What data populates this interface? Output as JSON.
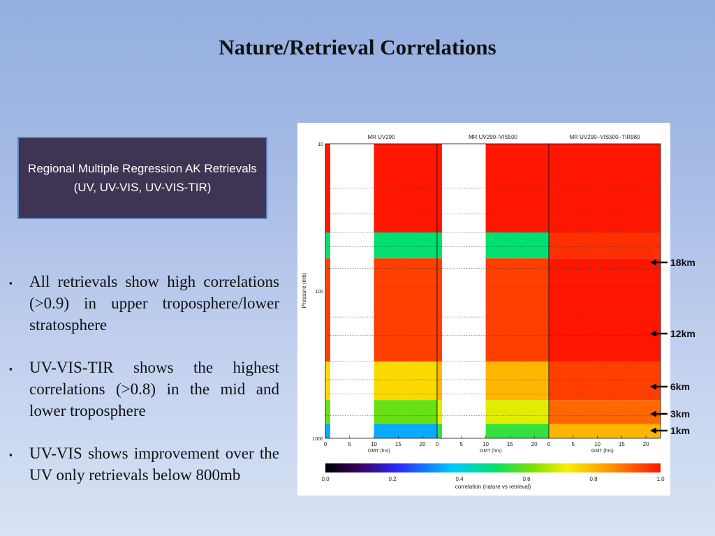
{
  "slide": {
    "title": "Nature/Retrieval Correlations",
    "box_text": "Regional Multiple Regression AK Retrievals (UV, UV-VIS, UV-VIS-TIR)",
    "bullets": [
      "All retrievals show high correlations (>0.9) in upper troposphere/lower stratosphere",
      "UV-VIS-TIR shows the highest correlations (>0.8) in the mid and lower troposphere",
      "UV-VIS shows improvement over the UV only retrievals below 800mb"
    ],
    "altitude_markers": [
      "18km",
      "12km",
      "6km",
      "3km",
      "1km"
    ],
    "colors": {
      "bg_top": "#93aee0",
      "box": "#3f3453",
      "box_border": "#5b84b8"
    }
  },
  "chart_data": {
    "type": "heatmap",
    "panels": [
      {
        "title": "MR UV290"
      },
      {
        "title": "MR UV290−VIS500"
      },
      {
        "title": "MR UV290−VIS500−TIR980"
      }
    ],
    "xlabel": "GMT (hrs)",
    "xticks": [
      "0",
      "5",
      "10",
      "15",
      "20"
    ],
    "xlim": [
      0,
      23
    ],
    "ylabel": "Pressure (mb)",
    "yticks": [
      "10",
      "100",
      "1000"
    ],
    "ylim": [
      1000,
      10
    ],
    "yscale": "log",
    "colorbar": {
      "label": "correlation (nature vs retrieval)",
      "ticks": [
        "0.0",
        "0.2",
        "0.4",
        "0.6",
        "0.8",
        "1.0"
      ],
      "range": [
        0.0,
        1.0
      ]
    },
    "grid": true,
    "summary_correlation_by_pressure": {
      "pressure_mb": [
        30,
        50,
        70,
        100,
        200,
        400,
        700,
        900
      ],
      "MR UV290": [
        1.0,
        0.5,
        0.95,
        0.95,
        0.95,
        0.75,
        0.6,
        0.35
      ],
      "MR UV290-VIS500": [
        1.0,
        0.5,
        0.95,
        0.95,
        0.95,
        0.8,
        0.7,
        0.55
      ],
      "MR UV290-VIS500-TIR980": [
        1.0,
        0.97,
        1.0,
        1.0,
        1.0,
        0.95,
        0.9,
        0.8
      ]
    }
  }
}
